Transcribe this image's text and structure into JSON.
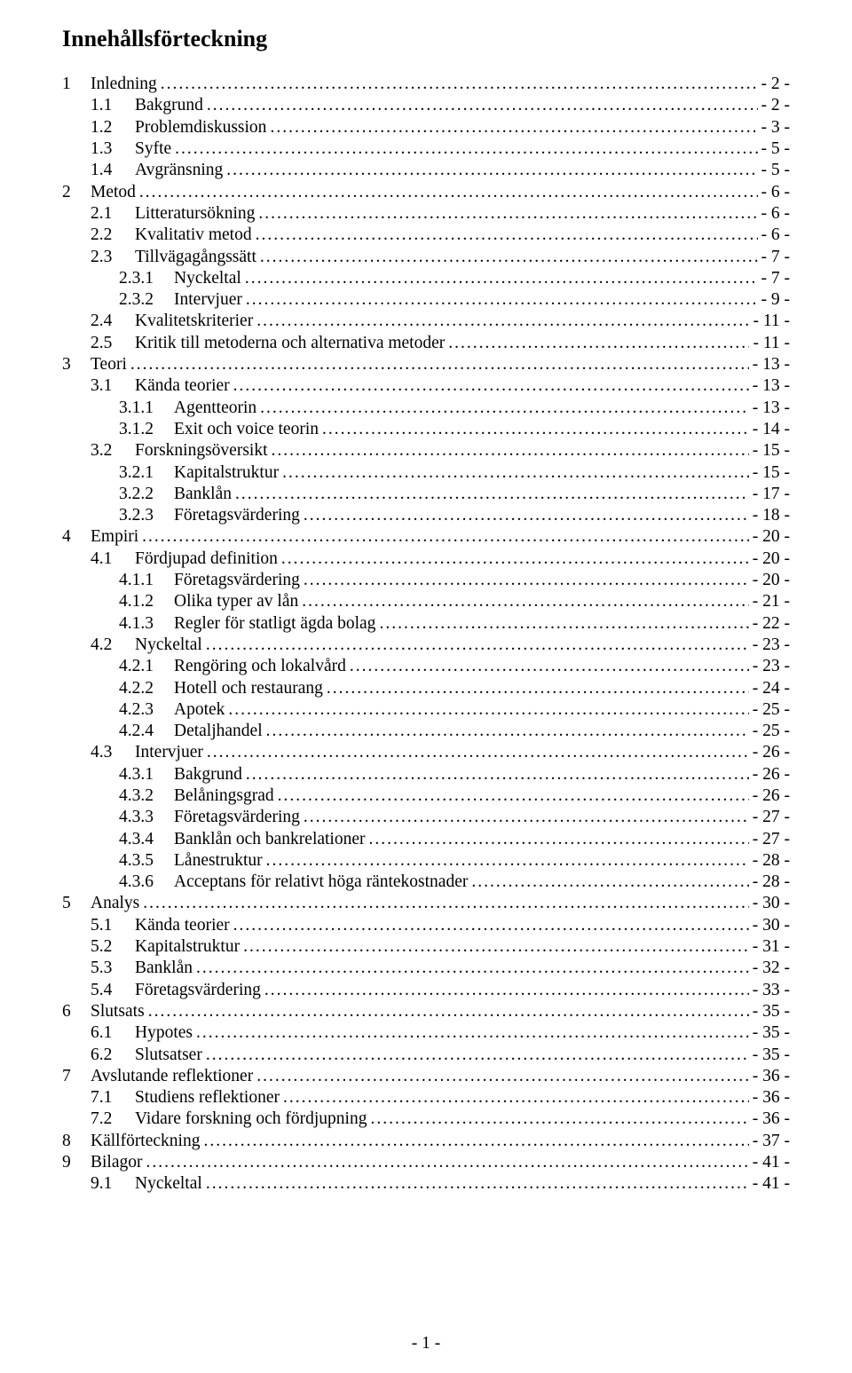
{
  "title": "Innehållsförteckning",
  "page_number": "- 1 -",
  "entries": [
    {
      "level": 0,
      "num": "1",
      "text": "Inledning",
      "page": "- 2 -"
    },
    {
      "level": 1,
      "num": "1.1",
      "text": "Bakgrund",
      "page": "- 2 -"
    },
    {
      "level": 1,
      "num": "1.2",
      "text": "Problemdiskussion",
      "page": "- 3 -"
    },
    {
      "level": 1,
      "num": "1.3",
      "text": "Syfte",
      "page": "- 5 -"
    },
    {
      "level": 1,
      "num": "1.4",
      "text": "Avgränsning",
      "page": "- 5 -"
    },
    {
      "level": 0,
      "num": "2",
      "text": "Metod",
      "page": "- 6 -"
    },
    {
      "level": 1,
      "num": "2.1",
      "text": "Litteratursökning",
      "page": "- 6 -"
    },
    {
      "level": 1,
      "num": "2.2",
      "text": "Kvalitativ metod",
      "page": "- 6 -"
    },
    {
      "level": 1,
      "num": "2.3",
      "text": "Tillvägagångssätt",
      "page": "- 7 -"
    },
    {
      "level": 2,
      "num": "2.3.1",
      "text": "Nyckeltal",
      "page": "- 7 -"
    },
    {
      "level": 2,
      "num": "2.3.2",
      "text": "Intervjuer",
      "page": "- 9 -"
    },
    {
      "level": 1,
      "num": "2.4",
      "text": "Kvalitetskriterier",
      "page": "- 11 -"
    },
    {
      "level": 1,
      "num": "2.5",
      "text": "Kritik till metoderna och alternativa metoder",
      "page": "- 11 -"
    },
    {
      "level": 0,
      "num": "3",
      "text": "Teori",
      "page": "- 13 -"
    },
    {
      "level": 1,
      "num": "3.1",
      "text": "Kända teorier",
      "page": "- 13 -"
    },
    {
      "level": 2,
      "num": "3.1.1",
      "text": "Agentteorin",
      "page": "- 13 -"
    },
    {
      "level": 2,
      "num": "3.1.2",
      "text": "Exit och voice teorin",
      "page": "- 14 -"
    },
    {
      "level": 1,
      "num": "3.2",
      "text": "Forskningsöversikt",
      "page": "- 15 -"
    },
    {
      "level": 2,
      "num": "3.2.1",
      "text": "Kapitalstruktur",
      "page": "- 15 -"
    },
    {
      "level": 2,
      "num": "3.2.2",
      "text": "Banklån",
      "page": "- 17 -"
    },
    {
      "level": 2,
      "num": "3.2.3",
      "text": "Företagsvärdering",
      "page": "- 18 -"
    },
    {
      "level": 0,
      "num": "4",
      "text": "Empiri",
      "page": "- 20 -"
    },
    {
      "level": 1,
      "num": "4.1",
      "text": "Fördjupad definition",
      "page": "- 20 -"
    },
    {
      "level": 2,
      "num": "4.1.1",
      "text": "Företagsvärdering",
      "page": "- 20 -"
    },
    {
      "level": 2,
      "num": "4.1.2",
      "text": "Olika typer av lån",
      "page": "- 21 -"
    },
    {
      "level": 2,
      "num": "4.1.3",
      "text": "Regler för statligt ägda bolag",
      "page": "- 22 -"
    },
    {
      "level": 1,
      "num": "4.2",
      "text": "Nyckeltal",
      "page": "- 23 -"
    },
    {
      "level": 2,
      "num": "4.2.1",
      "text": "Rengöring och lokalvård",
      "page": "- 23 -"
    },
    {
      "level": 2,
      "num": "4.2.2",
      "text": "Hotell och restaurang",
      "page": "- 24 -"
    },
    {
      "level": 2,
      "num": "4.2.3",
      "text": "Apotek",
      "page": "- 25 -"
    },
    {
      "level": 2,
      "num": "4.2.4",
      "text": "Detaljhandel",
      "page": "- 25 -"
    },
    {
      "level": 1,
      "num": "4.3",
      "text": "Intervjuer",
      "page": "- 26 -"
    },
    {
      "level": 2,
      "num": "4.3.1",
      "text": "Bakgrund",
      "page": "- 26 -"
    },
    {
      "level": 2,
      "num": "4.3.2",
      "text": "Belåningsgrad",
      "page": "- 26 -"
    },
    {
      "level": 2,
      "num": "4.3.3",
      "text": "Företagsvärdering",
      "page": "- 27 -"
    },
    {
      "level": 2,
      "num": "4.3.4",
      "text": "Banklån och bankrelationer",
      "page": "- 27 -"
    },
    {
      "level": 2,
      "num": "4.3.5",
      "text": "Lånestruktur",
      "page": "- 28 -"
    },
    {
      "level": 2,
      "num": "4.3.6",
      "text": "Acceptans för relativt höga räntekostnader",
      "page": "- 28 -"
    },
    {
      "level": 0,
      "num": "5",
      "text": "Analys",
      "page": "- 30 -"
    },
    {
      "level": 1,
      "num": "5.1",
      "text": "Kända teorier",
      "page": "- 30 -"
    },
    {
      "level": 1,
      "num": "5.2",
      "text": "Kapitalstruktur",
      "page": "- 31 -"
    },
    {
      "level": 1,
      "num": "5.3",
      "text": "Banklån",
      "page": "- 32 -"
    },
    {
      "level": 1,
      "num": "5.4",
      "text": "Företagsvärdering",
      "page": "- 33 -"
    },
    {
      "level": 0,
      "num": "6",
      "text": "Slutsats",
      "page": "- 35 -"
    },
    {
      "level": 1,
      "num": "6.1",
      "text": "Hypotes",
      "page": "- 35 -"
    },
    {
      "level": 1,
      "num": "6.2",
      "text": "Slutsatser",
      "page": "- 35 -"
    },
    {
      "level": 0,
      "num": "7",
      "text": "Avslutande reflektioner",
      "page": "- 36 -"
    },
    {
      "level": 1,
      "num": "7.1",
      "text": "Studiens reflektioner",
      "page": "- 36 -"
    },
    {
      "level": 1,
      "num": "7.2",
      "text": "Vidare forskning och fördjupning",
      "page": "- 36 -"
    },
    {
      "level": 0,
      "num": "8",
      "text": "Källförteckning",
      "page": "- 37 -"
    },
    {
      "level": 0,
      "num": "9",
      "text": "Bilagor",
      "page": "- 41 -"
    },
    {
      "level": 1,
      "num": "9.1",
      "text": "Nyckeltal",
      "page": "- 41 -"
    }
  ]
}
